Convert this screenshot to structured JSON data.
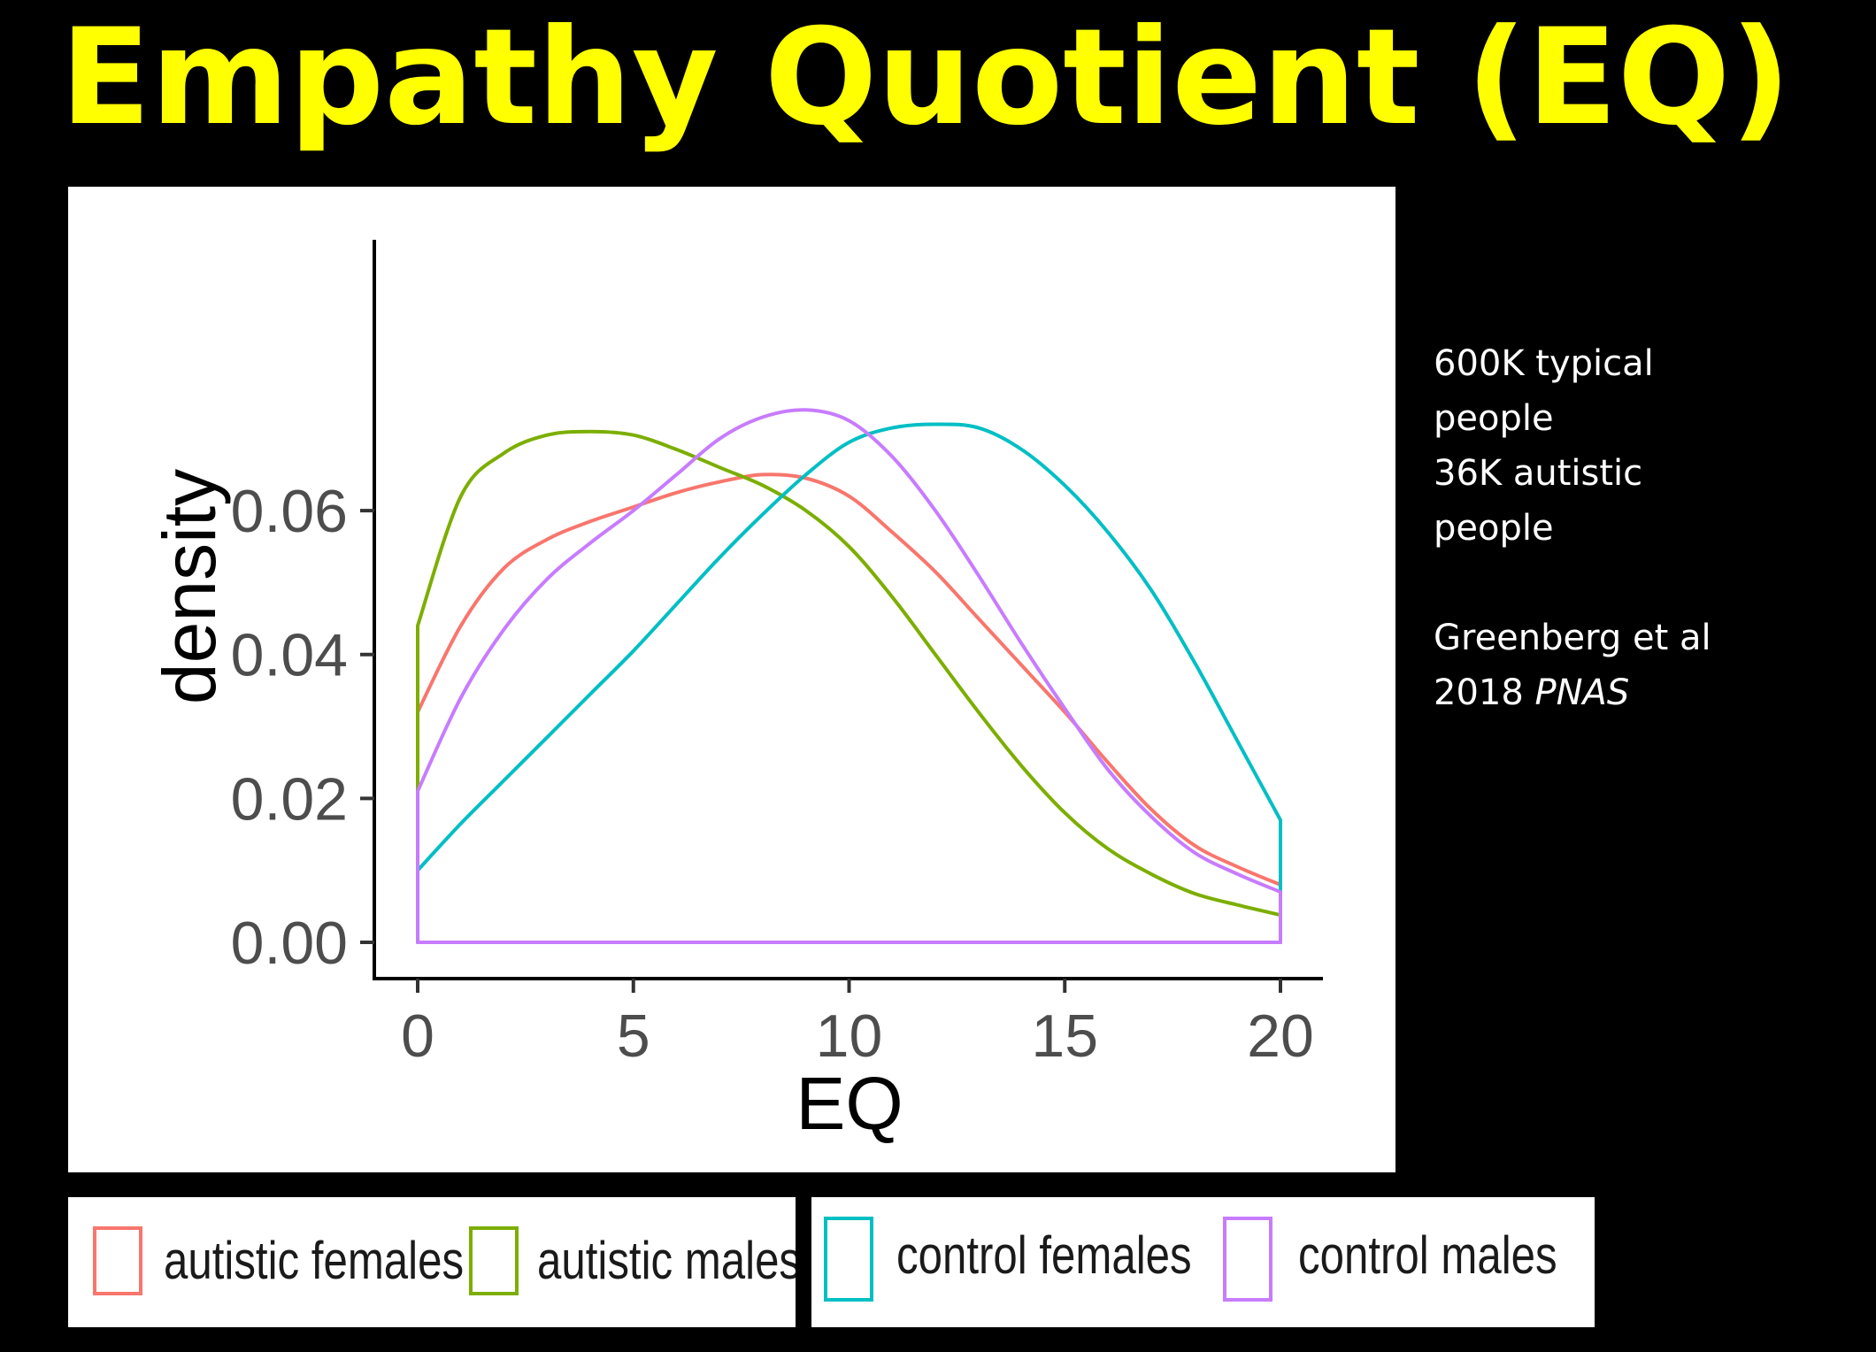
{
  "title": {
    "text": "Empathy Quotient (EQ)",
    "color": "#ffff00"
  },
  "notes": {
    "lines": [
      "600K typical",
      "people",
      "36K autistic",
      "people"
    ],
    "citation_line1": "Greenberg et al",
    "citation_year": "2018",
    "citation_journal": "PNAS"
  },
  "chart_data": {
    "type": "line",
    "xlabel": "EQ",
    "ylabel": "density",
    "xlim": [
      -1,
      21
    ],
    "ylim": [
      0,
      0.076
    ],
    "x_ticks": [
      0,
      5,
      10,
      15,
      20
    ],
    "x_tick_labels": [
      "0",
      "5",
      "10",
      "15",
      "20"
    ],
    "y_ticks": [
      0,
      0.02,
      0.04,
      0.06
    ],
    "y_tick_labels": [
      "0.00",
      "0.02",
      "0.04",
      "0.06"
    ],
    "grid": false,
    "legend_position": "bottom",
    "x": [
      0,
      1,
      2,
      3,
      4,
      5,
      6,
      7,
      8,
      9,
      10,
      11,
      12,
      13,
      14,
      15,
      16,
      17,
      18,
      19,
      20
    ],
    "series": [
      {
        "name": "autistic females",
        "color": "#f8766d",
        "values": [
          0.032,
          0.044,
          0.052,
          0.056,
          0.0585,
          0.0605,
          0.0625,
          0.064,
          0.065,
          0.0645,
          0.062,
          0.057,
          0.0515,
          0.045,
          0.0385,
          0.032,
          0.025,
          0.0185,
          0.0135,
          0.0105,
          0.008
        ]
      },
      {
        "name": "autistic males",
        "color": "#7cae00",
        "values": [
          0.044,
          0.062,
          0.068,
          0.0705,
          0.071,
          0.0705,
          0.0685,
          0.066,
          0.0635,
          0.06,
          0.055,
          0.048,
          0.04,
          0.032,
          0.0245,
          0.018,
          0.013,
          0.0095,
          0.0068,
          0.0052,
          0.0038
        ]
      },
      {
        "name": "control females",
        "color": "#00bfc4",
        "values": [
          0.01,
          0.0165,
          0.0225,
          0.0285,
          0.0345,
          0.0405,
          0.047,
          0.0535,
          0.0595,
          0.065,
          0.0695,
          0.0715,
          0.072,
          0.0715,
          0.0685,
          0.0635,
          0.057,
          0.049,
          0.039,
          0.028,
          0.017
        ]
      },
      {
        "name": "control males",
        "color": "#c77cff",
        "values": [
          0.021,
          0.034,
          0.0435,
          0.0505,
          0.0555,
          0.06,
          0.065,
          0.07,
          0.073,
          0.074,
          0.0725,
          0.0675,
          0.06,
          0.051,
          0.0415,
          0.0325,
          0.024,
          0.0175,
          0.0125,
          0.0095,
          0.007
        ]
      }
    ]
  },
  "legend": {
    "items": [
      {
        "label": "autistic females",
        "color": "#f8766d"
      },
      {
        "label": "autistic males",
        "color": "#7cae00"
      },
      {
        "label": "control females",
        "color": "#00bfc4"
      },
      {
        "label": "control males",
        "color": "#c77cff"
      }
    ]
  }
}
